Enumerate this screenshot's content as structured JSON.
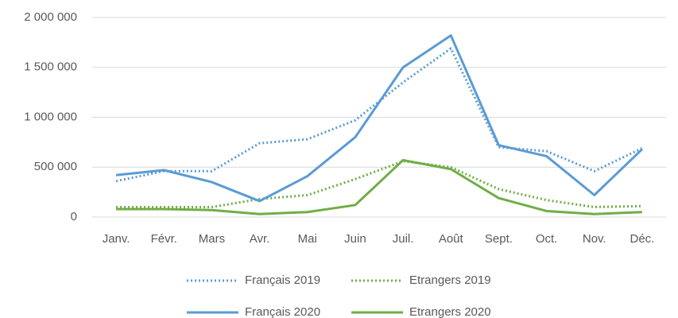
{
  "chart_data": {
    "type": "line",
    "categories": [
      "Janv.",
      "Févr.",
      "Mars",
      "Avr.",
      "Mai",
      "Juin",
      "Juil.",
      "Août",
      "Sept.",
      "Oct.",
      "Nov.",
      "Déc."
    ],
    "series": [
      {
        "name": "Français 2019",
        "color": "#5b9bd5",
        "line_style": "dotted",
        "values": [
          360000,
          460000,
          460000,
          740000,
          780000,
          970000,
          1350000,
          1690000,
          700000,
          660000,
          460000,
          690000
        ]
      },
      {
        "name": "Etrangers 2019",
        "color": "#70ad47",
        "line_style": "dotted",
        "values": [
          100000,
          100000,
          100000,
          180000,
          220000,
          380000,
          560000,
          500000,
          280000,
          170000,
          100000,
          110000
        ]
      },
      {
        "name": "Français 2020",
        "color": "#5b9bd5",
        "line_style": "solid",
        "values": [
          420000,
          470000,
          350000,
          160000,
          410000,
          800000,
          1500000,
          1820000,
          720000,
          610000,
          220000,
          680000
        ]
      },
      {
        "name": "Etrangers 2020",
        "color": "#70ad47",
        "line_style": "solid",
        "values": [
          80000,
          80000,
          70000,
          30000,
          50000,
          120000,
          570000,
          480000,
          190000,
          60000,
          30000,
          50000
        ]
      }
    ],
    "ylim": [
      0,
      2000000
    ],
    "yticks": [
      0,
      {
        "value": 500000,
        "label": "500 000"
      },
      {
        "value": 1000000,
        "label": "1 000 000"
      },
      {
        "value": 1500000,
        "label": "1 500 000"
      },
      {
        "value": 2000000,
        "label": "2 000 000"
      }
    ],
    "grid": true,
    "legend": "bottom"
  }
}
